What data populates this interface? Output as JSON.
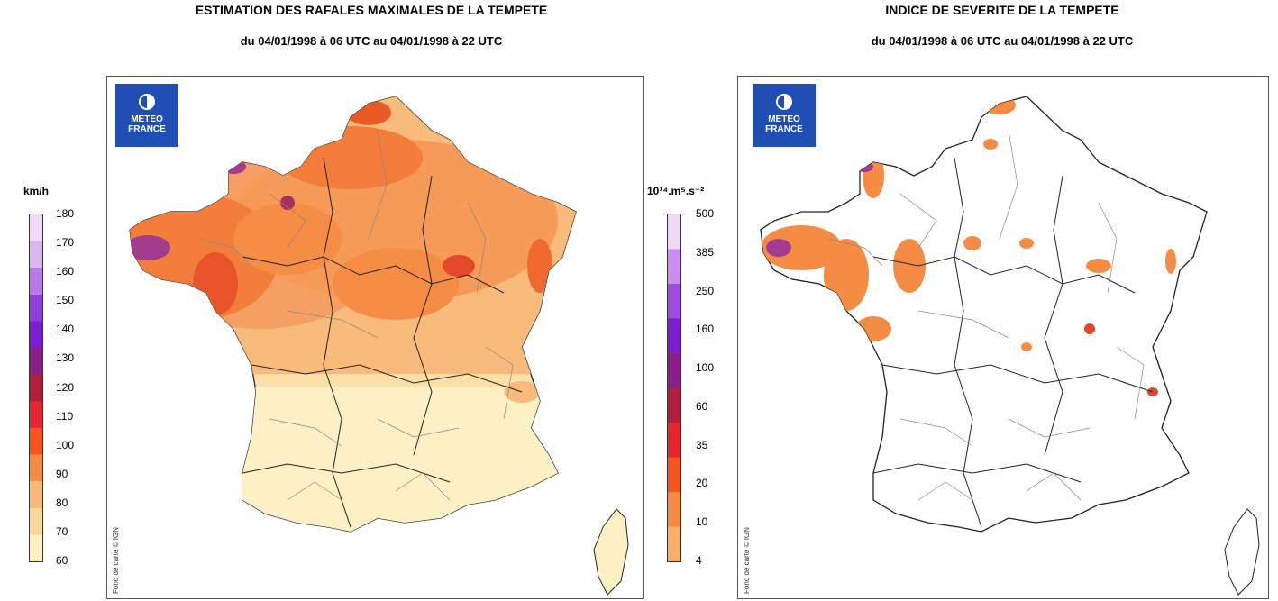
{
  "left_panel": {
    "title": "ESTIMATION DES RAFALES MAXIMALES DE LA TEMPETE",
    "subtitle": "du 04/01/1998 à 06 UTC au 04/01/1998 à 22 UTC",
    "logo_lines": [
      "METEO",
      "FRANCE"
    ],
    "credit": "Fond de carte © IGN",
    "colorbar": {
      "unit": "km/h",
      "ticks": [
        "180",
        "170",
        "160",
        "150",
        "140",
        "130",
        "120",
        "110",
        "100",
        "90",
        "80",
        "70",
        "60"
      ],
      "colors": [
        "#f0d8f8",
        "#d9b6f2",
        "#b77ae7",
        "#8f3fd8",
        "#7a1fd0",
        "#8a1f8a",
        "#b0203d",
        "#e4262e",
        "#f5551c",
        "#f58c44",
        "#f8ba7c",
        "#fbd798",
        "#fdf0c2"
      ]
    }
  },
  "right_panel": {
    "title": "INDICE DE SEVERITE DE LA TEMPETE",
    "subtitle": "du 04/01/1998 à 06 UTC au 04/01/1998 à 22 UTC",
    "logo_lines": [
      "METEO",
      "FRANCE"
    ],
    "credit": "Fond de carte © IGN",
    "colorbar": {
      "unit": "10¹⁴.m⁵.s⁻²",
      "ticks": [
        "500",
        "385",
        "250",
        "160",
        "100",
        "60",
        "35",
        "20",
        "10",
        "4"
      ],
      "colors": [
        "#f0d8f8",
        "#c98ef0",
        "#9a4fe0",
        "#7a1fd0",
        "#8a1f8a",
        "#b0203d",
        "#e4262e",
        "#f5551c",
        "#f58c44",
        "#f8ae6a"
      ]
    }
  },
  "colors": {
    "logo_blue": "#1f4fb5",
    "france_fill_left": "#fbe1a8",
    "storm_orange": "#f58c44",
    "border": "#555555"
  }
}
